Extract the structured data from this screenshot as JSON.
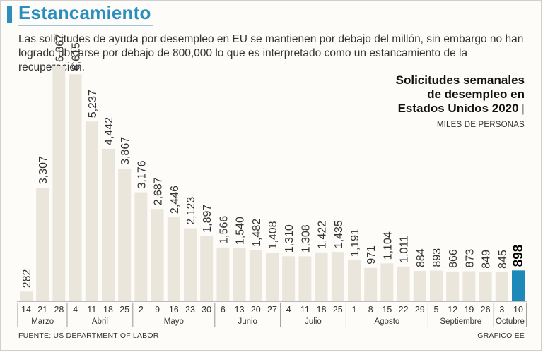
{
  "header": {
    "title": "Estancamiento",
    "subtitle": "Las solicitudes de ayuda por desempleo en EU se mantienen por debajo del millón, sin embargo no han logrado ubicarse por debajo de 800,000 lo que es interpretado como un estancamiento de la recuperación."
  },
  "chart_title": {
    "line1": "Solicitudes semanales",
    "line2": "de desempleo en",
    "line3": "Estados Unidos 2020",
    "units": "MILES DE PERSONAS"
  },
  "footer": {
    "source": "FUENTE: US DEPARTMENT OF LABOR",
    "credit": "GRÁFICO EE"
  },
  "colors": {
    "bar": "#ebe6dc",
    "highlight": "#1c89b8",
    "accent": "#2a8fbd"
  },
  "chart_data": {
    "type": "bar",
    "title": "Solicitudes semanales de desempleo en Estados Unidos 2020",
    "ylabel": "MILES DE PERSONAS",
    "ylim": [
      0,
      6867
    ],
    "grid": false,
    "categories": [
      "14",
      "21",
      "28",
      "4",
      "11",
      "18",
      "25",
      "2",
      "9",
      "16",
      "23",
      "30",
      "6",
      "13",
      "20",
      "27",
      "4",
      "11",
      "18",
      "25",
      "1",
      "8",
      "15",
      "22",
      "29",
      "5",
      "12",
      "19",
      "26",
      "3",
      "10"
    ],
    "values": [
      282,
      3307,
      6867,
      6615,
      5237,
      4442,
      3867,
      3176,
      2687,
      2446,
      2123,
      1897,
      1566,
      1540,
      1482,
      1408,
      1310,
      1308,
      1422,
      1435,
      1191,
      971,
      1104,
      1011,
      884,
      893,
      866,
      873,
      849,
      845,
      898
    ],
    "labels": [
      "282",
      "3,307",
      "6,867",
      "6,615",
      "5,237",
      "4,442",
      "3,867",
      "3,176",
      "2,687",
      "2,446",
      "2,123",
      "1,897",
      "1,566",
      "1,540",
      "1,482",
      "1,408",
      "1,310",
      "1,308",
      "1,422",
      "1,435",
      "1,191",
      "971",
      "1,104",
      "1,011",
      "884",
      "893",
      "866",
      "873",
      "849",
      "845",
      "898"
    ],
    "highlight_index": 30,
    "months": [
      {
        "name": "Marzo",
        "count": 3
      },
      {
        "name": "Abril",
        "count": 4
      },
      {
        "name": "Mayo",
        "count": 5
      },
      {
        "name": "Junio",
        "count": 4
      },
      {
        "name": "Julio",
        "count": 4
      },
      {
        "name": "Agosto",
        "count": 5
      },
      {
        "name": "Septiembre",
        "count": 4
      },
      {
        "name": "Octubre",
        "count": 2
      }
    ]
  }
}
